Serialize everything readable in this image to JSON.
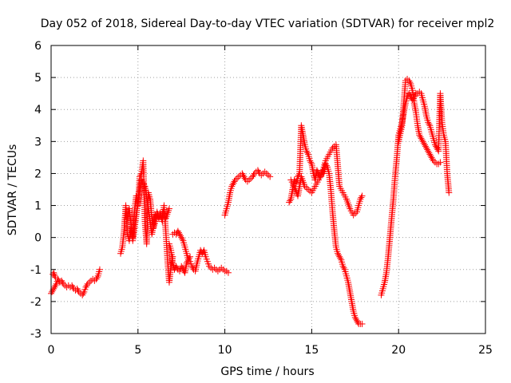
{
  "chart_data": {
    "type": "scatter",
    "title": "Day 052 of 2018, Sidereal Day-to-day VTEC variation (SDTVAR) for receiver mpl2",
    "xlabel": "GPS time / hours",
    "ylabel": "SDTVAR / TECUs",
    "xlim": [
      0,
      25
    ],
    "ylim": [
      -3,
      6
    ],
    "xticks": [
      "0",
      "5",
      "10",
      "15",
      "20",
      "25"
    ],
    "yticks": [
      "-3",
      "-2",
      "-1",
      "0",
      "1",
      "2",
      "3",
      "4",
      "5",
      "6"
    ],
    "grid": true,
    "marker": "plus",
    "color": "#ff0000",
    "series": [
      {
        "x": [
          0.0,
          0.1,
          0.2,
          0.3,
          0.4,
          0.5,
          0.6,
          0.7,
          0.8,
          0.9,
          1.0,
          1.1,
          1.2,
          1.3,
          1.4,
          1.5,
          1.6,
          1.7,
          1.8,
          1.9,
          2.0,
          2.1,
          2.2,
          2.3,
          2.4,
          2.5,
          2.6,
          2.7,
          2.8
        ],
        "y": [
          -1.75,
          -1.65,
          -1.55,
          -1.45,
          -1.3,
          -1.4,
          -1.35,
          -1.45,
          -1.5,
          -1.55,
          -1.5,
          -1.55,
          -1.5,
          -1.6,
          -1.65,
          -1.6,
          -1.7,
          -1.75,
          -1.8,
          -1.7,
          -1.55,
          -1.45,
          -1.4,
          -1.35,
          -1.3,
          -1.35,
          -1.3,
          -1.2,
          -1.0
        ]
      },
      {
        "x": [
          0.1,
          0.15,
          0.2,
          0.25
        ],
        "y": [
          -1.15,
          -1.1,
          -1.2,
          -1.25
        ]
      },
      {
        "x": [
          4.0,
          4.1,
          4.2,
          4.3,
          4.4,
          4.5,
          4.6,
          4.7,
          4.8,
          4.9,
          5.0,
          5.1,
          5.2,
          5.3,
          5.4,
          5.5,
          5.6,
          5.7,
          5.8,
          5.9,
          6.0,
          6.1,
          6.2,
          6.3,
          6.4,
          6.5,
          6.6,
          6.7,
          6.8,
          6.9,
          7.0
        ],
        "y": [
          -0.5,
          -0.3,
          0.2,
          1.0,
          0.1,
          -0.1,
          0.3,
          0.0,
          0.8,
          1.3,
          1.0,
          1.9,
          2.0,
          2.4,
          0.5,
          -0.2,
          1.4,
          1.2,
          0.6,
          0.3,
          0.5,
          0.8,
          0.6,
          0.7,
          0.5,
          1.0,
          0.2,
          -0.7,
          -1.4,
          -0.9,
          -0.6
        ]
      },
      {
        "x": [
          4.4,
          4.5,
          4.6,
          4.7,
          5.0,
          5.2,
          5.4,
          5.6,
          5.8,
          6.0,
          6.4,
          6.6,
          6.8
        ],
        "y": [
          0.6,
          0.9,
          0.4,
          -0.1,
          1.1,
          1.8,
          1.6,
          0.9,
          0.1,
          0.7,
          0.8,
          0.6,
          0.9
        ]
      },
      {
        "x": [
          6.8,
          6.9,
          7.0,
          7.1,
          7.2,
          7.3,
          7.4,
          7.5,
          7.6,
          7.7,
          7.8,
          7.9,
          8.0,
          8.1,
          8.2,
          8.3,
          8.4,
          8.5,
          8.6,
          8.7,
          8.8,
          8.9,
          9.0,
          9.1,
          9.2,
          9.3,
          9.4,
          9.5,
          9.6,
          9.7,
          9.8,
          9.9,
          10.0,
          10.1,
          10.2
        ],
        "y": [
          -0.2,
          -0.4,
          -0.8,
          -1.0,
          -0.9,
          -1.0,
          -1.05,
          -0.9,
          -1.0,
          -1.1,
          -0.8,
          -0.7,
          -0.75,
          -0.9,
          -1.0,
          -1.05,
          -0.8,
          -0.6,
          -0.4,
          -0.5,
          -0.4,
          -0.6,
          -0.75,
          -0.9,
          -0.95,
          -1.0,
          -0.95,
          -1.0,
          -1.05,
          -1.0,
          -0.95,
          -1.0,
          -1.05,
          -1.05,
          -1.1
        ]
      },
      {
        "x": [
          7.0,
          7.1,
          7.2,
          7.3,
          7.4,
          7.5,
          7.6,
          7.7,
          7.8,
          7.9,
          8.0
        ],
        "y": [
          0.1,
          0.15,
          0.1,
          0.2,
          0.1,
          0.0,
          -0.1,
          -0.3,
          -0.5,
          -0.7,
          -0.6
        ]
      },
      {
        "x": [
          10.0,
          10.1,
          10.2,
          10.3,
          10.4,
          10.5,
          10.6,
          10.7,
          10.8,
          10.9,
          11.0,
          11.1,
          11.2,
          11.3,
          11.4,
          11.5,
          11.6,
          11.7,
          11.8,
          11.9,
          12.0,
          12.1,
          12.2,
          12.3,
          12.4,
          12.5,
          12.6
        ],
        "y": [
          0.7,
          0.9,
          1.1,
          1.4,
          1.6,
          1.7,
          1.8,
          1.85,
          1.9,
          1.95,
          2.0,
          1.9,
          1.8,
          1.75,
          1.8,
          1.85,
          1.9,
          2.0,
          2.05,
          2.1,
          2.0,
          1.95,
          2.0,
          2.05,
          2.0,
          1.95,
          1.9
        ]
      },
      {
        "x": [
          13.7,
          13.8,
          13.9,
          14.0,
          14.1,
          14.2,
          14.3,
          14.4,
          14.5,
          14.6,
          14.7,
          14.8,
          14.9,
          15.0,
          15.1,
          15.2,
          15.3,
          15.4,
          15.5,
          15.6,
          15.7,
          15.8,
          15.9,
          16.0,
          16.1,
          16.2,
          16.3,
          16.4,
          16.5,
          16.6,
          16.7,
          16.8,
          16.9,
          17.0,
          17.1,
          17.2,
          17.3,
          17.4,
          17.5,
          17.6,
          17.7,
          17.8,
          17.9
        ],
        "y": [
          1.1,
          1.2,
          1.5,
          1.8,
          1.7,
          1.9,
          2.0,
          3.5,
          3.2,
          2.9,
          2.7,
          2.6,
          2.4,
          2.3,
          2.0,
          1.8,
          2.1,
          2.0,
          1.9,
          2.1,
          2.0,
          2.3,
          2.2,
          2.0,
          1.5,
          0.8,
          0.2,
          -0.3,
          -0.5,
          -0.6,
          -0.7,
          -0.9,
          -1.0,
          -1.2,
          -1.4,
          -1.7,
          -2.0,
          -2.3,
          -2.5,
          -2.6,
          -2.7,
          -2.7,
          -2.7
        ]
      },
      {
        "x": [
          13.8,
          14.0,
          14.2,
          14.4,
          14.6,
          14.8,
          15.0,
          15.2,
          15.4,
          15.6,
          15.8,
          16.0,
          16.2,
          16.4,
          16.6,
          16.8,
          17.0,
          17.2,
          17.4,
          17.6,
          17.8,
          17.9
        ],
        "y": [
          1.8,
          1.6,
          1.3,
          1.9,
          1.6,
          1.5,
          1.4,
          1.6,
          1.8,
          2.0,
          2.4,
          2.6,
          2.8,
          2.9,
          1.6,
          1.4,
          1.2,
          0.9,
          0.7,
          0.8,
          1.2,
          1.3
        ]
      },
      {
        "x": [
          19.0,
          19.1,
          19.2,
          19.3,
          19.4,
          19.5,
          19.6,
          19.7,
          19.8,
          19.9,
          20.0,
          20.1,
          20.2,
          20.3,
          20.4,
          20.5,
          20.6,
          20.7,
          20.8,
          20.9,
          21.0,
          21.1,
          21.2,
          21.3,
          21.4,
          21.5,
          21.6,
          21.7,
          21.8,
          21.9,
          22.0,
          22.1,
          22.2,
          22.3,
          22.4,
          22.5,
          22.6,
          22.7,
          22.8,
          22.9
        ],
        "y": [
          -1.8,
          -1.6,
          -1.4,
          -1.1,
          -0.6,
          0.0,
          0.6,
          1.2,
          1.9,
          2.5,
          3.2,
          3.4,
          3.6,
          3.9,
          4.2,
          4.4,
          4.5,
          4.4,
          4.3,
          4.4,
          4.5,
          4.5,
          4.55,
          4.5,
          4.3,
          4.1,
          3.8,
          3.6,
          3.5,
          3.3,
          3.1,
          2.9,
          2.8,
          2.7,
          4.5,
          3.6,
          3.2,
          3.0,
          2.0,
          1.4
        ]
      },
      {
        "x": [
          20.0,
          20.2,
          20.4,
          20.5,
          20.6,
          20.7,
          20.8,
          20.9,
          21.0,
          21.1,
          21.2,
          21.3,
          21.4,
          21.5,
          21.6,
          21.7,
          21.8,
          21.9,
          22.0,
          22.1,
          22.2,
          22.3,
          22.4
        ],
        "y": [
          3.0,
          3.5,
          4.9,
          4.95,
          4.9,
          4.8,
          4.6,
          4.2,
          3.9,
          3.5,
          3.2,
          3.1,
          3.0,
          2.9,
          2.8,
          2.7,
          2.6,
          2.5,
          2.4,
          2.35,
          2.3,
          2.3,
          2.35
        ]
      }
    ]
  }
}
